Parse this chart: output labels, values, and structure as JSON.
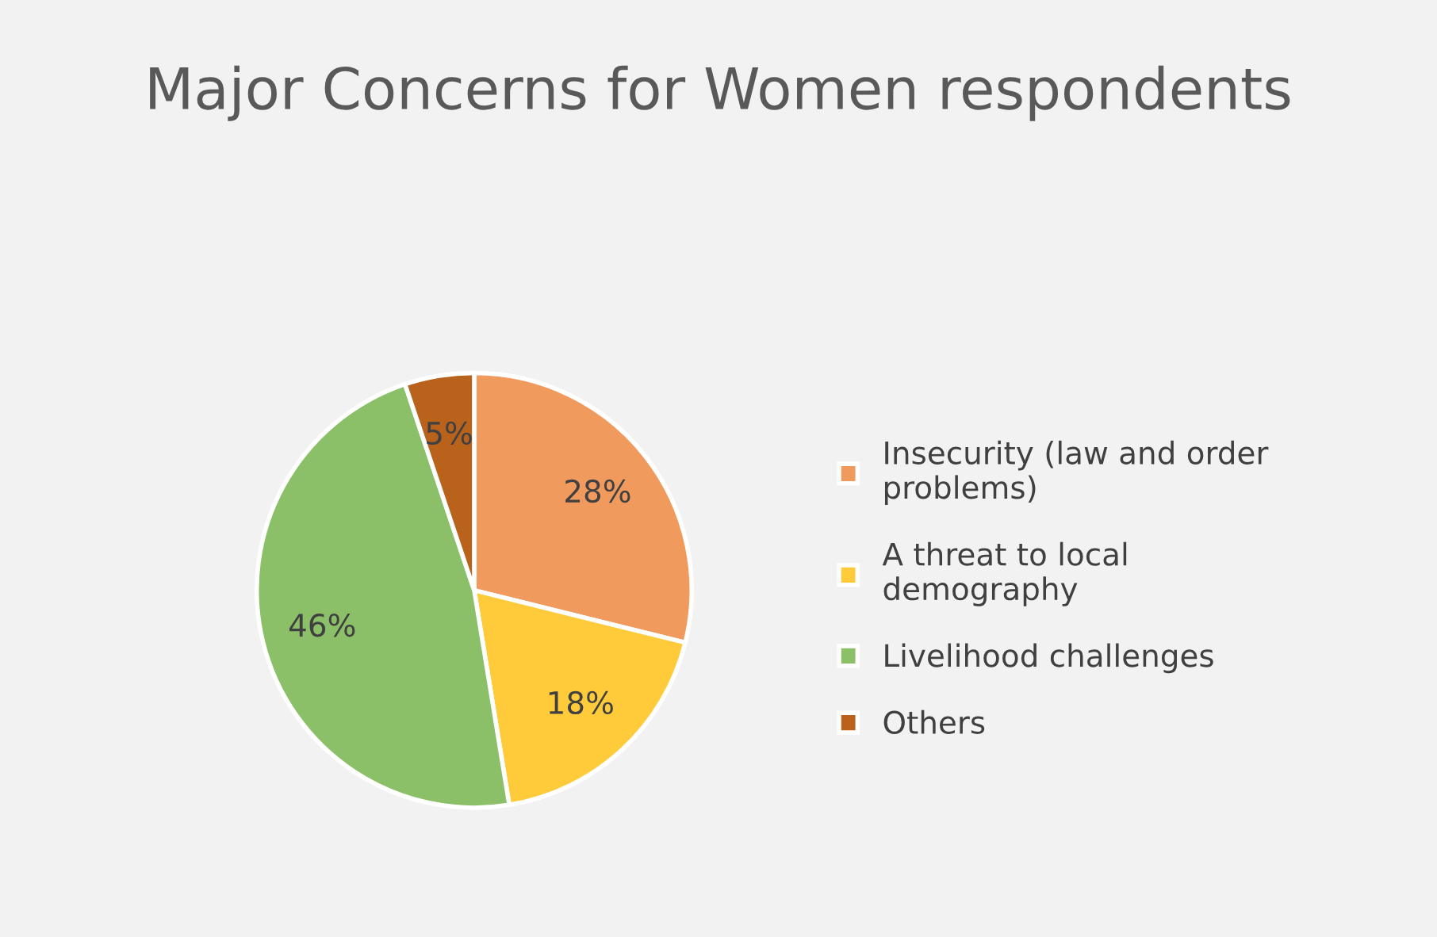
{
  "chart_data": {
    "type": "pie",
    "title": "Major Concerns for Women respondents",
    "categories": [
      "Insecurity (law and order problems)",
      "A threat to local demography",
      "Livelihood challenges",
      "Others"
    ],
    "values": [
      28,
      18,
      46,
      5
    ],
    "colors": [
      "#f09a5e",
      "#ffcb3a",
      "#8cc068",
      "#b8621c"
    ],
    "value_labels": [
      "28%",
      "18%",
      "46%",
      "5%"
    ],
    "legend": "right"
  }
}
